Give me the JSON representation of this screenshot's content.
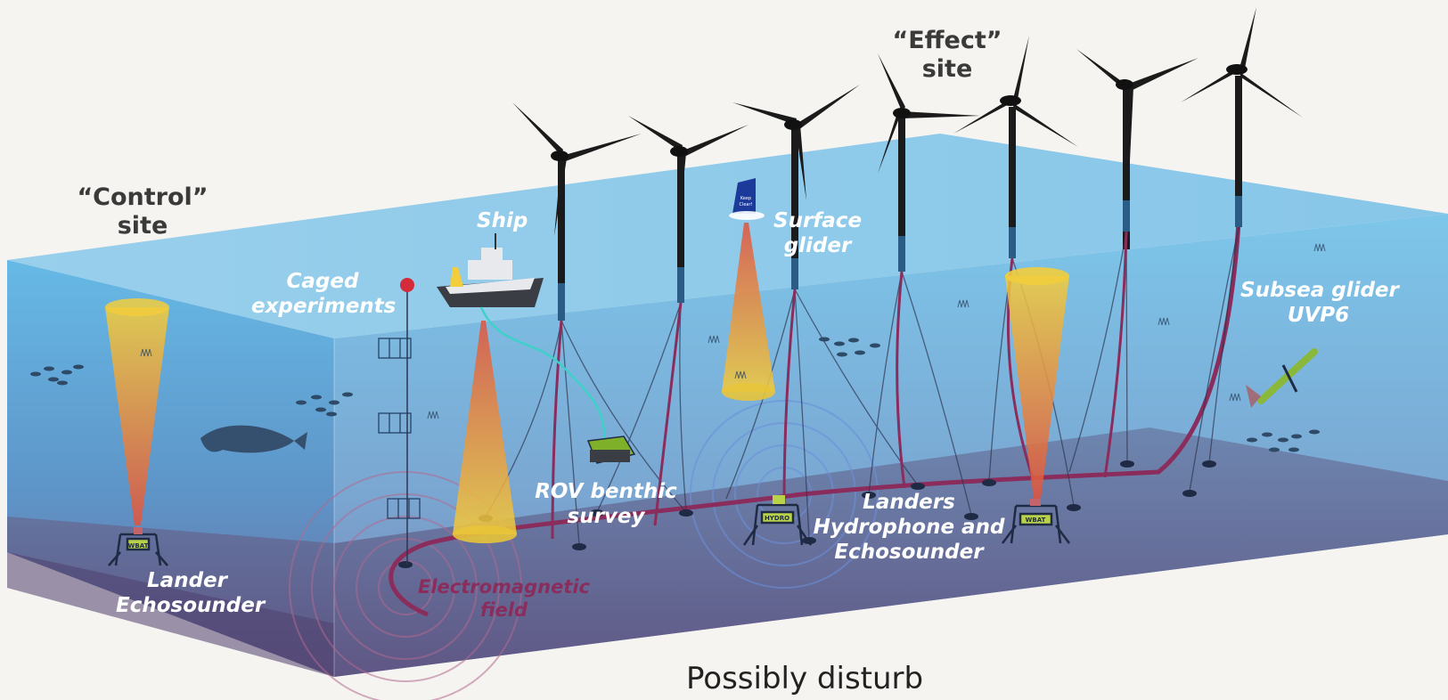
{
  "sites": {
    "control": [
      "“Control”",
      "site"
    ],
    "effect": [
      "“Effect”",
      "site"
    ]
  },
  "labels": {
    "ship": "Ship",
    "surface_glider": [
      "Surface",
      "glider"
    ],
    "caged_experiments": [
      "Caged",
      "experiments"
    ],
    "subsea_glider": [
      "Subsea glider",
      "UVP6"
    ],
    "rov": [
      "ROV benthic",
      "survey"
    ],
    "landers": [
      "Landers",
      "Hydrophone and",
      "Echosounder"
    ],
    "lander_control": [
      "Lander",
      "Echosounder"
    ],
    "em_field": [
      "Electromagnetic",
      "field"
    ]
  },
  "device_tags": {
    "wbat_left": "WBAT",
    "wbat_right": "WBAT",
    "hydro": "HYDRO",
    "glider_sign": [
      "Keep",
      "Clear!"
    ]
  },
  "bottom_text": "Possibly disturb",
  "colors": {
    "sea_top": "#8ec8e8",
    "sea_front": "#6fb6de",
    "seabed": "#5d5f8a",
    "cable": "#8a2d5c",
    "beam": "#e8c43a",
    "beam_core": "#d9534f",
    "turbine": "#1b1b1b",
    "fish": "#2e4a66"
  }
}
